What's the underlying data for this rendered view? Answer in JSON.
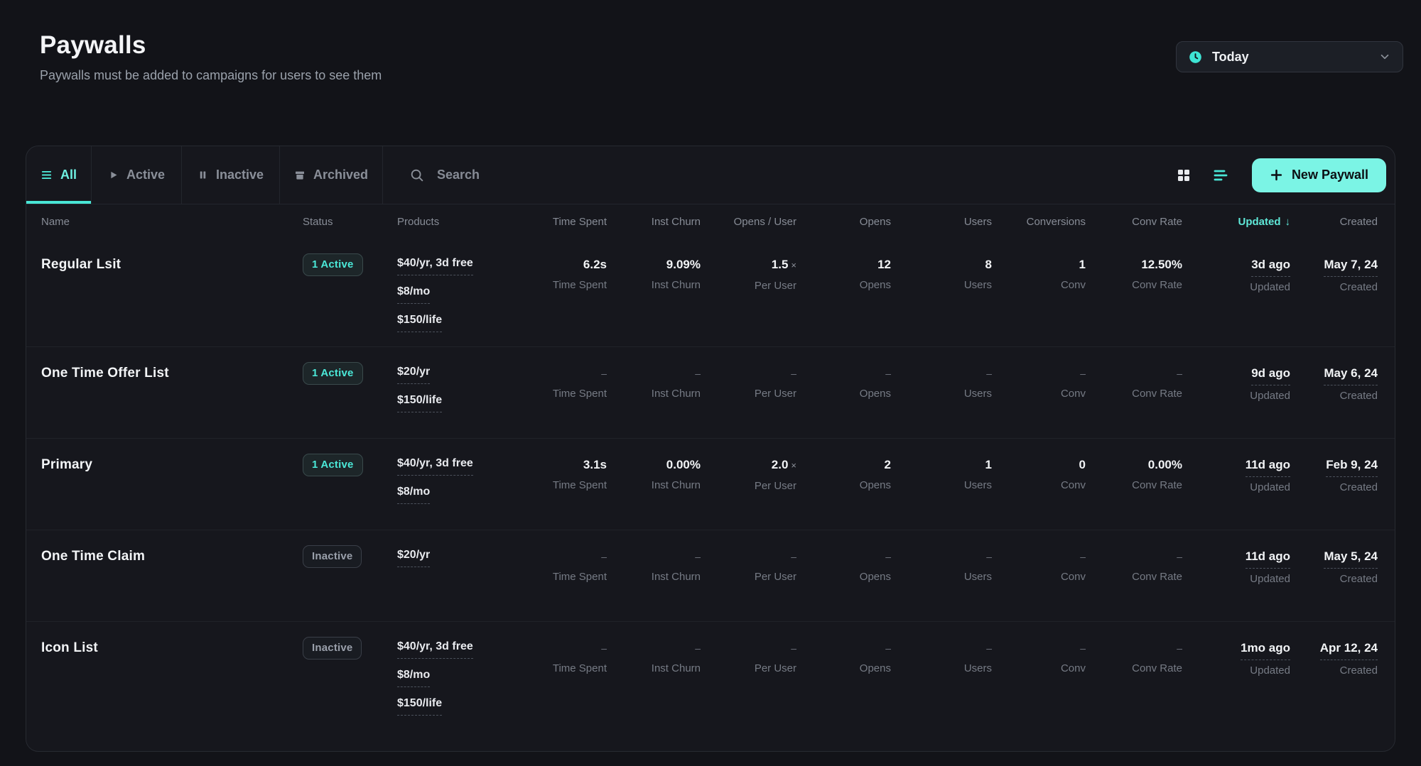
{
  "header": {
    "title": "Paywalls",
    "subtitle": "Paywalls must be added to campaigns for users to see them",
    "date_filter": {
      "label": "Today"
    }
  },
  "toolbar": {
    "tabs": [
      {
        "id": "all",
        "label": "All",
        "icon": "list-icon",
        "active": true
      },
      {
        "id": "active",
        "label": "Active",
        "icon": "play-icon",
        "active": false
      },
      {
        "id": "inactive",
        "label": "Inactive",
        "icon": "pause-icon",
        "active": false
      },
      {
        "id": "archived",
        "label": "Archived",
        "icon": "archive-icon",
        "active": false
      }
    ],
    "search": {
      "placeholder": "Search"
    },
    "new_paywall_label": "New Paywall"
  },
  "table": {
    "columns": [
      "Name",
      "Status",
      "Products",
      "Time Spent",
      "Inst Churn",
      "Opens / User",
      "Opens",
      "Users",
      "Conversions",
      "Conv Rate",
      "Updated",
      "Created"
    ],
    "sorted_column": "Updated",
    "sort_direction": "desc",
    "metric_labels": [
      "Time Spent",
      "Inst Churn",
      "Per User",
      "Opens",
      "Users",
      "Conv",
      "Conv Rate"
    ],
    "date_labels": {
      "updated": "Updated",
      "created": "Created"
    },
    "per_user_suffix": "×",
    "empty_placeholder": "–",
    "rows": [
      {
        "name": "Regular Lsit",
        "status": "1 Active",
        "status_type": "active",
        "products": [
          "$40/yr, 3d free",
          "$8/mo",
          "$150/life"
        ],
        "metrics": [
          "6.2s",
          "9.09%",
          "1.5",
          "12",
          "8",
          "1",
          "12.50%"
        ],
        "updated": "3d ago",
        "created": "May 7, 24"
      },
      {
        "name": "One Time Offer List",
        "status": "1 Active",
        "status_type": "active",
        "products": [
          "$20/yr",
          "$150/life"
        ],
        "metrics": [
          null,
          null,
          null,
          null,
          null,
          null,
          null
        ],
        "updated": "9d ago",
        "created": "May 6, 24"
      },
      {
        "name": "Primary",
        "status": "1 Active",
        "status_type": "active",
        "products": [
          "$40/yr, 3d free",
          "$8/mo"
        ],
        "metrics": [
          "3.1s",
          "0.00%",
          "2.0",
          "2",
          "1",
          "0",
          "0.00%"
        ],
        "updated": "11d ago",
        "created": "Feb 9, 24"
      },
      {
        "name": "One Time Claim",
        "status": "Inactive",
        "status_type": "inactive",
        "products": [
          "$20/yr"
        ],
        "metrics": [
          null,
          null,
          null,
          null,
          null,
          null,
          null
        ],
        "updated": "11d ago",
        "created": "May 5, 24"
      },
      {
        "name": "Icon List",
        "status": "Inactive",
        "status_type": "inactive",
        "products": [
          "$40/yr, 3d free",
          "$8/mo",
          "$150/life"
        ],
        "metrics": [
          null,
          null,
          null,
          null,
          null,
          null,
          null
        ],
        "updated": "1mo ago",
        "created": "Apr 12, 24"
      }
    ]
  },
  "colors": {
    "accent": "#4DE8D8",
    "button": "#7BF4E5",
    "background": "#121318",
    "card": "#16171D"
  }
}
